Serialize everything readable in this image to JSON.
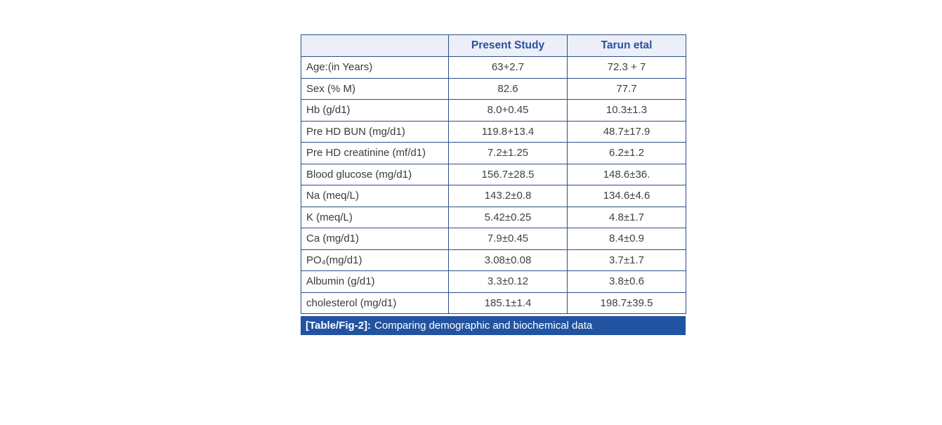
{
  "table": {
    "columns": [
      "",
      "Present Study",
      "Tarun etal"
    ],
    "rows": [
      {
        "label": "Age:(in Years)",
        "present": "63+2.7",
        "tarun": "72.3 + 7"
      },
      {
        "label": "Sex (% M)",
        "present": "82.6",
        "tarun": "77.7"
      },
      {
        "label": "Hb (g/d1)",
        "present": "8.0+0.45",
        "tarun": "10.3±1.3"
      },
      {
        "label": "Pre HD BUN (mg/d1)",
        "present": "119.8+13.4",
        "tarun": "48.7±17.9"
      },
      {
        "label": "Pre HD creatinine (mf/d1)",
        "present": "7.2±1.25",
        "tarun": "6.2±1.2"
      },
      {
        "label": "Blood glucose (mg/d1)",
        "present": "156.7±28.5",
        "tarun": "148.6±36."
      },
      {
        "label": "Na (meq/L)",
        "present": "143.2±0.8",
        "tarun": "134.6±4.6"
      },
      {
        "label": "K (meq/L)",
        "present": "5.42±0.25",
        "tarun": "4.8±1.7"
      },
      {
        "label": "Ca (mg/d1)",
        "present": "7.9±0.45",
        "tarun": "8.4±0.9"
      },
      {
        "label": "PO₄(mg/d1)",
        "present": "3.08±0.08",
        "tarun": "3.7±1.7"
      },
      {
        "label": "Albumin (g/d1)",
        "present": "3.3±0.12",
        "tarun": "3.8±0.6"
      },
      {
        "label": "cholesterol (mg/d1)",
        "present": "185.1±1.4",
        "tarun": "198.7±39.5"
      }
    ],
    "caption": {
      "tag": "[Table/Fig-2]:",
      "text": "Comparing demographic and biochemical data"
    }
  },
  "colors": {
    "border": "#2e4d87",
    "header_bg": "#eceff8",
    "header_text": "#2d4fa1",
    "caption_bg": "#2253a0",
    "caption_text": "#ffffff",
    "body_text": "#3a3a3a",
    "page_bg": "#ffffff"
  }
}
